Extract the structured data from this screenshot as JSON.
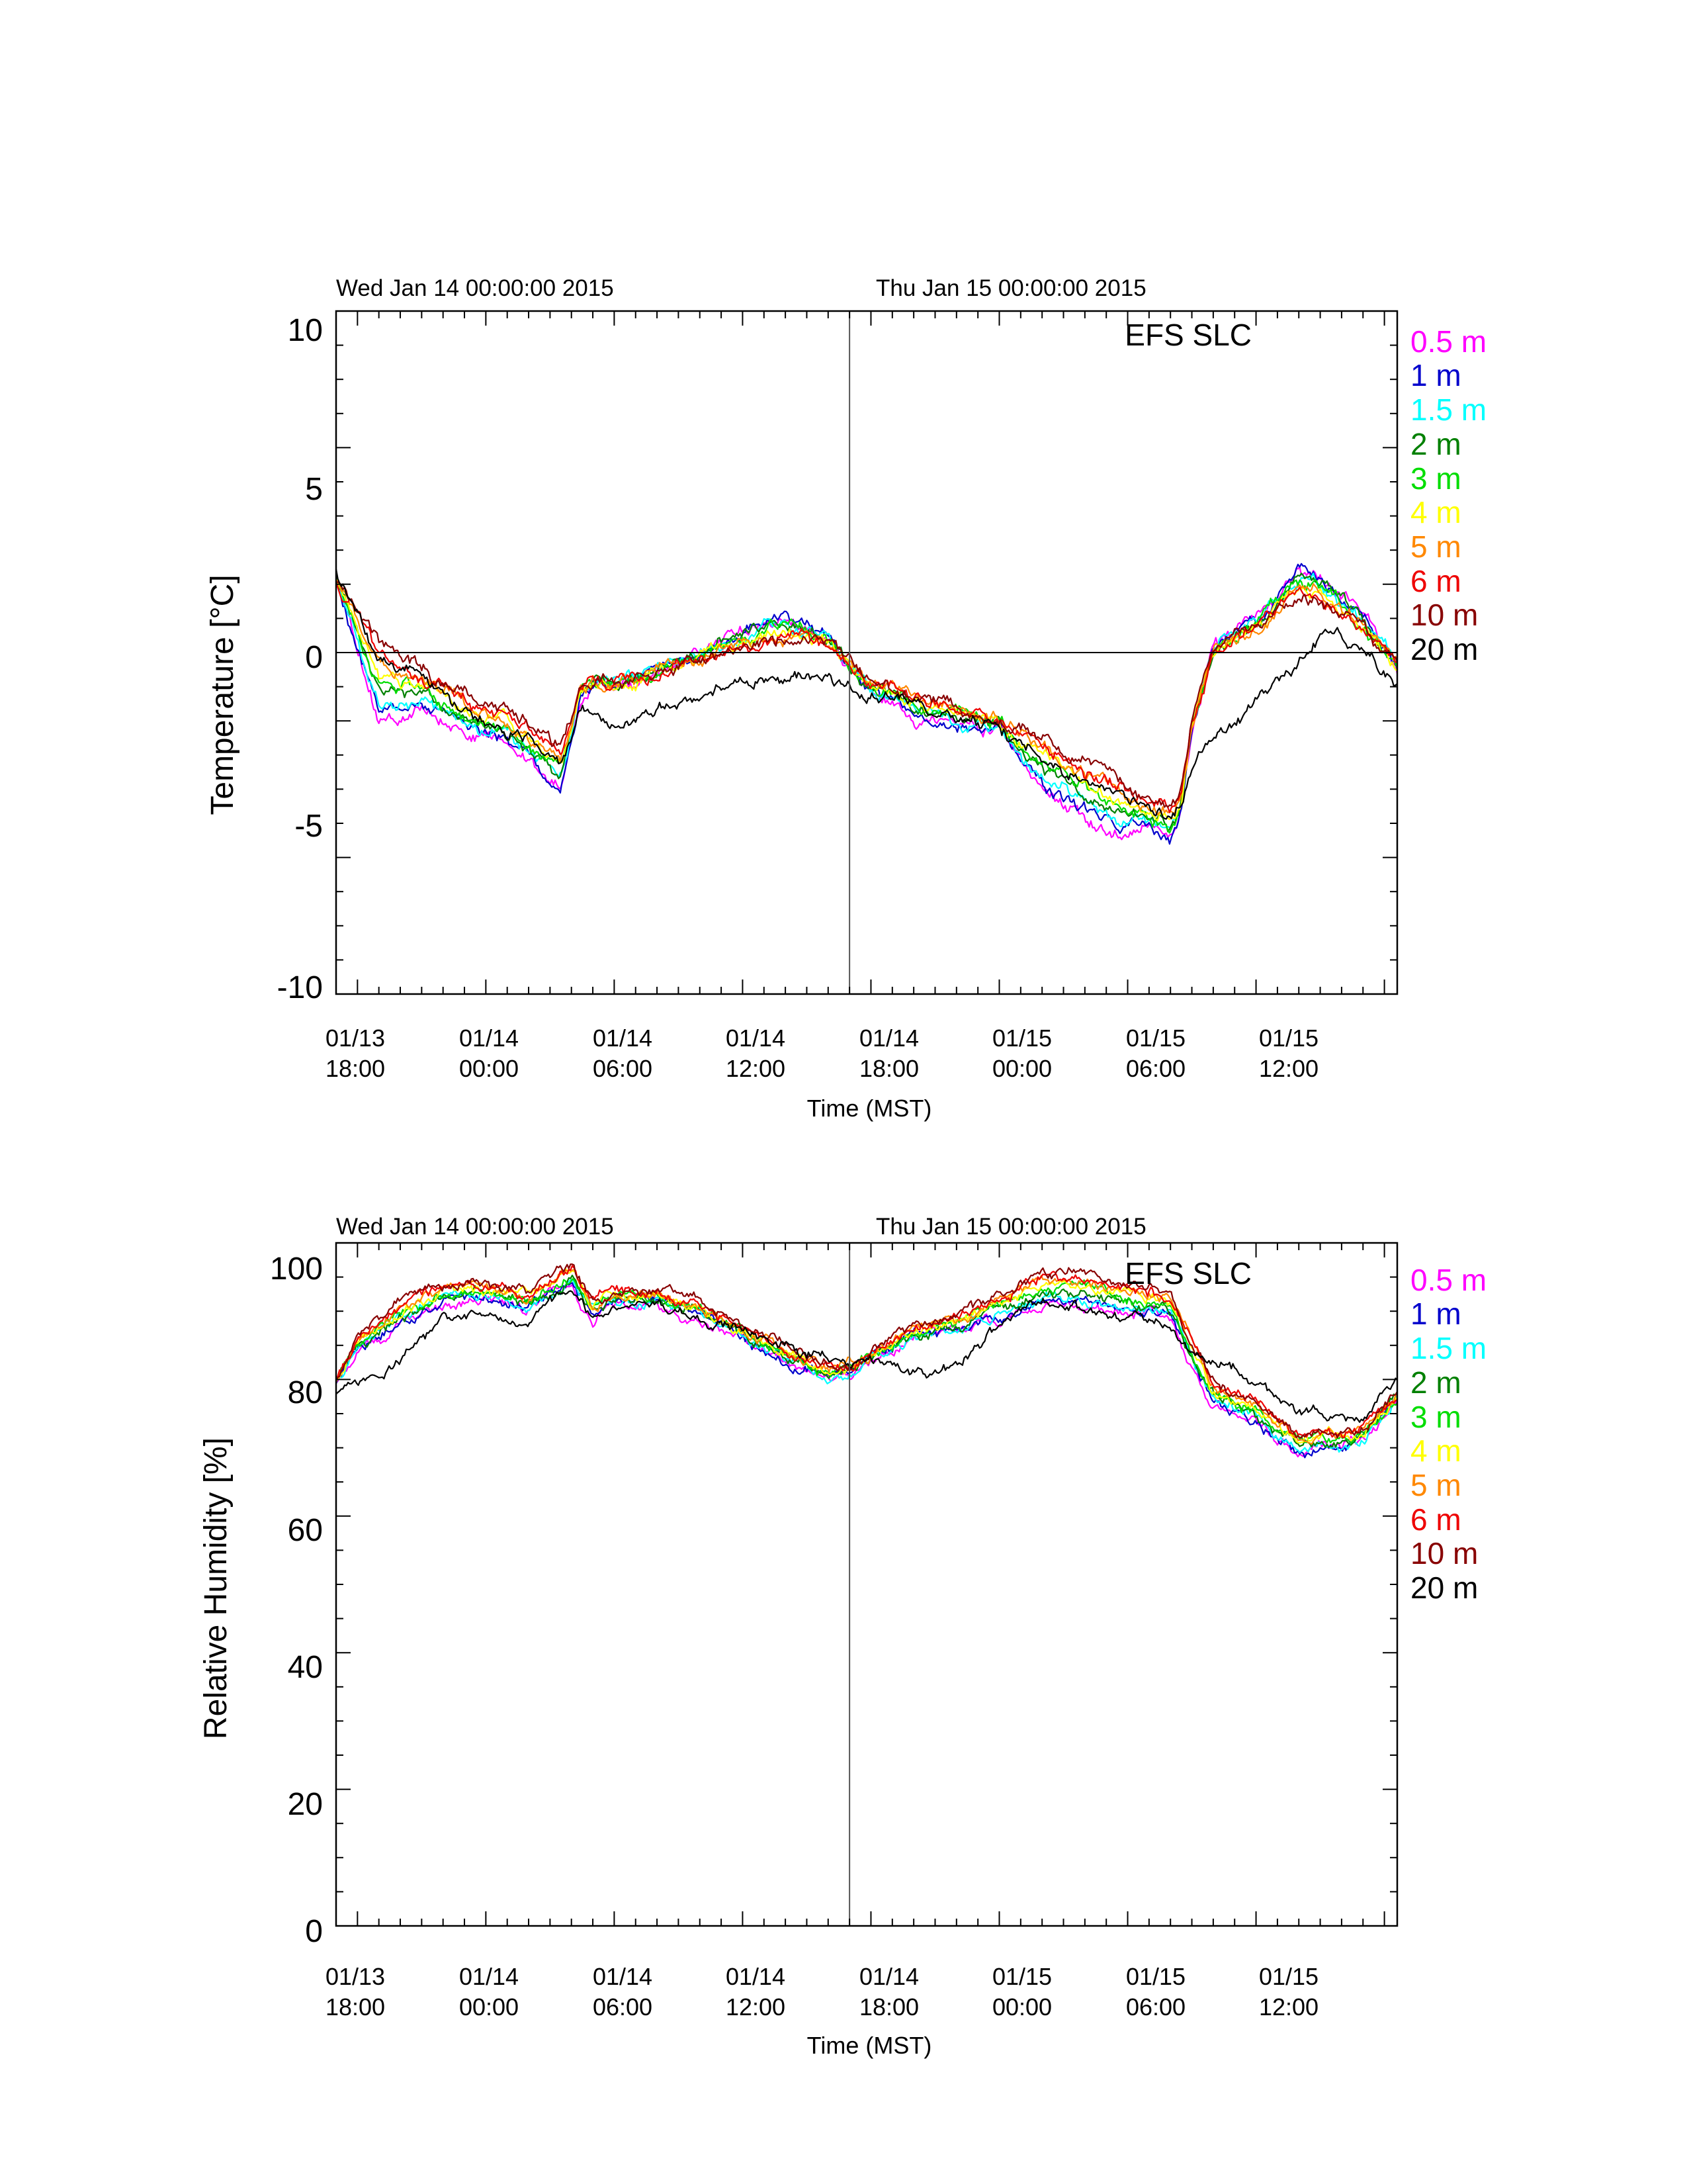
{
  "chart_data": [
    {
      "type": "line",
      "title": "",
      "station_label": "EFS SLC",
      "top_dates": [
        "Wed Jan 14 00:00:00 2015",
        "Thu Jan 15 00:00:00 2015"
      ],
      "xlabel": "Time (MST)",
      "ylabel": "Temperature [°C]",
      "ylim": [
        -10,
        10
      ],
      "yticks": [
        "10",
        "5",
        "0",
        "-5",
        "-10"
      ],
      "xlim_hours": [
        -7,
        42.6
      ],
      "x_ticks": [
        {
          "hour": -6,
          "line1": "01/13",
          "line2": "18:00"
        },
        {
          "hour": 0,
          "line1": "01/14",
          "line2": "00:00"
        },
        {
          "hour": 6,
          "line1": "01/14",
          "line2": "06:00"
        },
        {
          "hour": 12,
          "line1": "01/14",
          "line2": "12:00"
        },
        {
          "hour": 18,
          "line1": "01/14",
          "line2": "18:00"
        },
        {
          "hour": 24,
          "line1": "01/15",
          "line2": "00:00"
        },
        {
          "hour": 30,
          "line1": "01/15",
          "line2": "06:00"
        },
        {
          "hour": 36,
          "line1": "01/15",
          "line2": "12:00"
        }
      ],
      "vertical_marker_hour": 17,
      "reference_line_y": 0,
      "legend_placement": "right",
      "series": [
        {
          "name": "0.5 m",
          "color": "#ff00ff"
        },
        {
          "name": "1 m",
          "color": "#0000cc"
        },
        {
          "name": "1.5 m",
          "color": "#00ffff"
        },
        {
          "name": "2 m",
          "color": "#008000"
        },
        {
          "name": "3 m",
          "color": "#00dd00"
        },
        {
          "name": "4 m",
          "color": "#ffff00"
        },
        {
          "name": "5 m",
          "color": "#ff8800"
        },
        {
          "name": "6 m",
          "color": "#ee0000"
        },
        {
          "name": "10 m",
          "color": "#880000"
        },
        {
          "name": "20 m",
          "color": "#000000"
        }
      ],
      "profile_x_hours": [
        -7,
        -5,
        -3,
        -1,
        1,
        2.5,
        3.5,
        4.4,
        5,
        6,
        7,
        9,
        11,
        13,
        14,
        15,
        16,
        18,
        20,
        22,
        24,
        26,
        28,
        29.5,
        31,
        32,
        32.5,
        33,
        34,
        35,
        36,
        37,
        38,
        39,
        40,
        41,
        42.6
      ],
      "profile_anchor_low": [
        2.2,
        -2.0,
        -1.7,
        -2.3,
        -2.6,
        -3.5,
        -3.9,
        -1.3,
        -0.9,
        -0.9,
        -0.8,
        -0.3,
        0.4,
        0.9,
        1.0,
        0.8,
        0.4,
        -1.2,
        -1.8,
        -2.1,
        -2.3,
        -4.0,
        -4.8,
        -5.4,
        -5.2,
        -5.6,
        -4.6,
        -2.2,
        0.1,
        0.6,
        1.0,
        1.6,
        2.5,
        2.2,
        1.6,
        1.0,
        -0.4
      ],
      "profile_anchor_high": [
        2.0,
        0.3,
        -0.5,
        -1.2,
        -1.8,
        -2.3,
        -2.9,
        -1.1,
        -0.9,
        -0.9,
        -0.8,
        -0.4,
        0.0,
        0.3,
        0.4,
        0.4,
        0.2,
        -0.8,
        -1.2,
        -1.6,
        -1.9,
        -2.5,
        -3.2,
        -3.7,
        -4.3,
        -4.4,
        -4.0,
        -2.0,
        -0.1,
        0.4,
        0.7,
        1.2,
        1.6,
        1.5,
        1.1,
        0.7,
        -0.4
      ],
      "profile_20m": [
        2.3,
        -0.2,
        -0.9,
        -1.7,
        -2.3,
        -2.8,
        -3.4,
        -1.6,
        -1.5,
        -2.3,
        -1.9,
        -1.4,
        -1.0,
        -0.8,
        -0.7,
        -0.7,
        -0.7,
        -1.3,
        -1.7,
        -2.1,
        -2.3,
        -3.2,
        -3.8,
        -4.2,
        -4.5,
        -4.7,
        -4.4,
        -3.3,
        -2.5,
        -2.0,
        -1.5,
        -0.8,
        -0.3,
        0.6,
        0.4,
        0.1,
        -0.9
      ]
    },
    {
      "type": "line",
      "title": "",
      "station_label": "EFS SLC",
      "top_dates": [
        "Wed Jan 14 00:00:00 2015",
        "Thu Jan 15 00:00:00 2015"
      ],
      "xlabel": "Time (MST)",
      "ylabel": "Relative Humidity [%]",
      "ylim": [
        0,
        100
      ],
      "yticks": [
        "100",
        "80",
        "60",
        "40",
        "20",
        "0"
      ],
      "xlim_hours": [
        -7,
        42.6
      ],
      "x_ticks": [
        {
          "hour": -6,
          "line1": "01/13",
          "line2": "18:00"
        },
        {
          "hour": 0,
          "line1": "01/14",
          "line2": "00:00"
        },
        {
          "hour": 6,
          "line1": "01/14",
          "line2": "06:00"
        },
        {
          "hour": 12,
          "line1": "01/14",
          "line2": "12:00"
        },
        {
          "hour": 18,
          "line1": "01/14",
          "line2": "18:00"
        },
        {
          "hour": 24,
          "line1": "01/15",
          "line2": "00:00"
        },
        {
          "hour": 30,
          "line1": "01/15",
          "line2": "06:00"
        },
        {
          "hour": 36,
          "line1": "01/15",
          "line2": "12:00"
        }
      ],
      "vertical_marker_hour": 17,
      "legend_placement": "right",
      "series": [
        {
          "name": "0.5 m",
          "color": "#ff00ff"
        },
        {
          "name": "1 m",
          "color": "#0000cc"
        },
        {
          "name": "1.5 m",
          "color": "#00ffff"
        },
        {
          "name": "2 m",
          "color": "#008000"
        },
        {
          "name": "3 m",
          "color": "#00dd00"
        },
        {
          "name": "4 m",
          "color": "#ffff00"
        },
        {
          "name": "5 m",
          "color": "#ff8800"
        },
        {
          "name": "6 m",
          "color": "#ee0000"
        },
        {
          "name": "10 m",
          "color": "#880000"
        },
        {
          "name": "20 m",
          "color": "#000000"
        }
      ],
      "profile_x_hours": [
        -7,
        -6,
        -4,
        -2,
        0,
        2,
        3,
        4,
        5,
        6,
        8,
        10,
        12,
        14,
        16,
        17,
        18,
        20,
        22,
        24,
        26,
        28,
        30,
        32,
        33,
        34,
        35,
        36,
        37,
        38,
        39,
        40,
        41,
        42.6
      ],
      "profile_anchor_low": [
        80,
        84,
        88,
        91,
        92,
        90,
        92,
        93,
        89,
        91,
        91,
        89,
        86,
        82,
        80,
        81,
        83,
        86,
        87,
        89,
        91,
        91,
        90,
        89,
        82,
        76,
        75,
        74,
        71,
        69,
        70,
        70,
        71,
        77
      ],
      "profile_anchor_high": [
        80,
        86,
        91,
        94,
        94,
        93,
        95,
        97,
        92,
        93,
        93,
        91,
        88,
        85,
        82,
        82,
        84,
        88,
        89,
        92,
        96,
        95,
        94,
        93,
        86,
        80,
        78,
        77,
        74,
        72,
        72,
        72,
        73,
        78
      ],
      "profile_20m": [
        78,
        79,
        83,
        89,
        90,
        88,
        92,
        93,
        89,
        90,
        91,
        89,
        87,
        85,
        83,
        82,
        83,
        80,
        82,
        88,
        92,
        90,
        89,
        88,
        84,
        82,
        81,
        79,
        77,
        75,
        75,
        74,
        74,
        80
      ]
    }
  ]
}
